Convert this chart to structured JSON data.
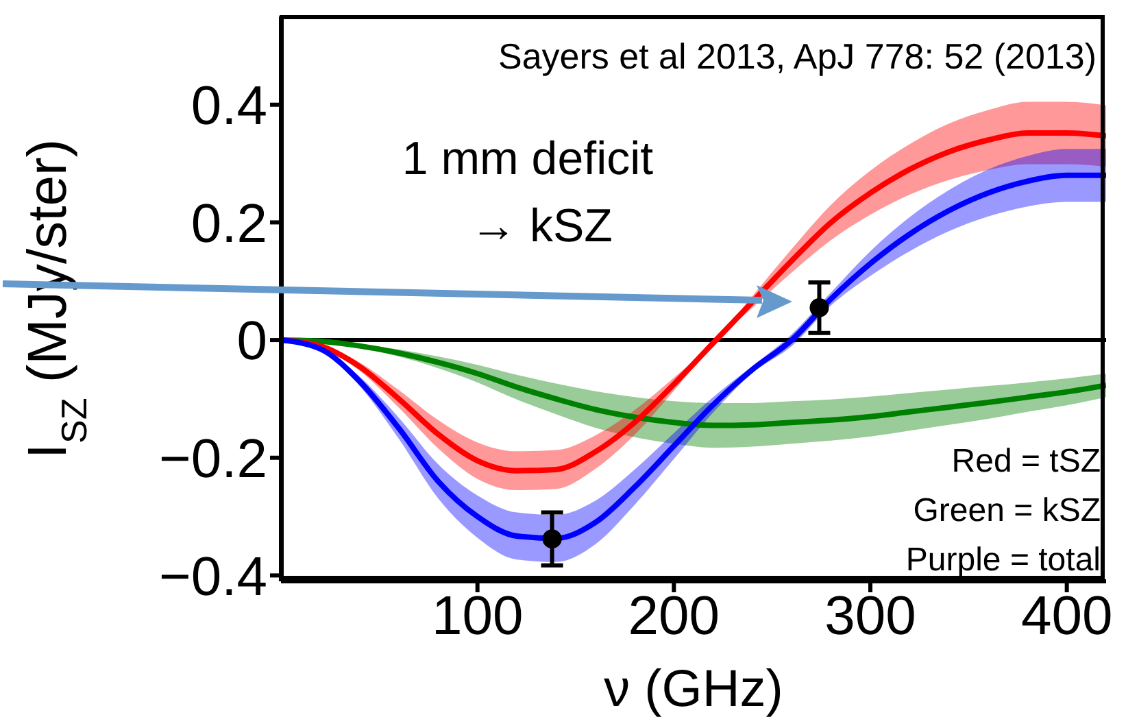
{
  "chart_data": {
    "type": "line",
    "xlabel": "ν (GHz)",
    "ylabel": "I$_{SZ}$ (MJy/ster)",
    "x": [
      0,
      20,
      40,
      60,
      80,
      100,
      120,
      140,
      160,
      180,
      200,
      220,
      240,
      260,
      280,
      300,
      320,
      340,
      360,
      380,
      400,
      420
    ],
    "xlim": [
      0,
      420
    ],
    "xticks": [
      100,
      200,
      300,
      400
    ],
    "ylim": [
      -0.41,
      0.55
    ],
    "yticks": [
      -0.4,
      -0.2,
      0,
      0.2,
      0.4
    ],
    "line_style": "solid",
    "series": [
      {
        "color": "#008000",
        "values": [
          0,
          -0.002,
          -0.01,
          -0.022,
          -0.038,
          -0.057,
          -0.08,
          -0.1,
          -0.118,
          -0.131,
          -0.14,
          -0.145,
          -0.144,
          -0.14,
          -0.136,
          -0.13,
          -0.122,
          -0.114,
          -0.106,
          -0.097,
          -0.088,
          -0.077
        ],
        "lower": [
          0,
          -0.0025,
          -0.013,
          -0.028,
          -0.048,
          -0.072,
          -0.101,
          -0.126,
          -0.149,
          -0.165,
          -0.176,
          -0.183,
          -0.181,
          -0.176,
          -0.171,
          -0.164,
          -0.154,
          -0.144,
          -0.134,
          -0.122,
          -0.111,
          -0.097
        ],
        "upper": [
          0,
          -0.0015,
          -0.007,
          -0.016,
          -0.028,
          -0.042,
          -0.059,
          -0.074,
          -0.087,
          -0.097,
          -0.104,
          -0.107,
          -0.107,
          -0.104,
          -0.101,
          -0.096,
          -0.09,
          -0.084,
          -0.078,
          -0.072,
          -0.065,
          -0.057
        ]
      },
      {
        "color": "#ff0000",
        "values": [
          0,
          -0.01,
          -0.045,
          -0.1,
          -0.16,
          -0.205,
          -0.222,
          -0.22,
          -0.19,
          -0.14,
          -0.075,
          -0.005,
          0.065,
          0.135,
          0.2,
          0.25,
          0.29,
          0.32,
          0.34,
          0.352,
          0.352,
          0.347
        ],
        "lower": [
          0,
          -0.0115,
          -0.052,
          -0.115,
          -0.184,
          -0.236,
          -0.255,
          -0.253,
          -0.219,
          -0.161,
          -0.086,
          -0.006,
          0.055,
          0.115,
          0.17,
          0.213,
          0.247,
          0.272,
          0.289,
          0.299,
          0.299,
          0.295
        ],
        "upper": [
          0,
          -0.0085,
          -0.038,
          -0.085,
          -0.136,
          -0.174,
          -0.189,
          -0.187,
          -0.162,
          -0.119,
          -0.064,
          -0.004,
          0.075,
          0.155,
          0.23,
          0.288,
          0.333,
          0.368,
          0.391,
          0.405,
          0.405,
          0.399
        ]
      },
      {
        "color": "#0000ff",
        "values": [
          0,
          -0.015,
          -0.07,
          -0.15,
          -0.24,
          -0.3,
          -0.333,
          -0.337,
          -0.31,
          -0.25,
          -0.18,
          -0.11,
          -0.05,
          0,
          0.07,
          0.13,
          0.18,
          0.22,
          0.25,
          0.27,
          0.28,
          0.28
        ],
        "lower": [
          0,
          -0.017,
          -0.078,
          -0.168,
          -0.269,
          -0.336,
          -0.373,
          -0.377,
          -0.347,
          -0.28,
          -0.202,
          -0.123,
          -0.056,
          -0.01,
          0.059,
          0.109,
          0.151,
          0.185,
          0.21,
          0.227,
          0.235,
          0.235
        ],
        "upper": [
          0,
          -0.013,
          -0.062,
          -0.132,
          -0.211,
          -0.264,
          -0.293,
          -0.297,
          -0.273,
          -0.22,
          -0.158,
          -0.097,
          -0.044,
          0.01,
          0.081,
          0.151,
          0.209,
          0.255,
          0.29,
          0.313,
          0.325,
          0.325
        ]
      },
      {
        "type": "scatter",
        "marker": "circle",
        "color": "#000000",
        "x": [
          138,
          274
        ],
        "values": [
          -0.338,
          0.055
        ],
        "errors": [
          0.045,
          0.043
        ]
      }
    ],
    "ref_lines": [
      {
        "axis": "y",
        "value": 0,
        "color": "#000000"
      }
    ],
    "annotations": [
      "Sayers et al 2013, ApJ 778: 52 (2013)",
      "1 mm deficit",
      "→ kSZ",
      "Red = tSZ",
      "Green = kSZ",
      "Purple = total"
    ]
  }
}
